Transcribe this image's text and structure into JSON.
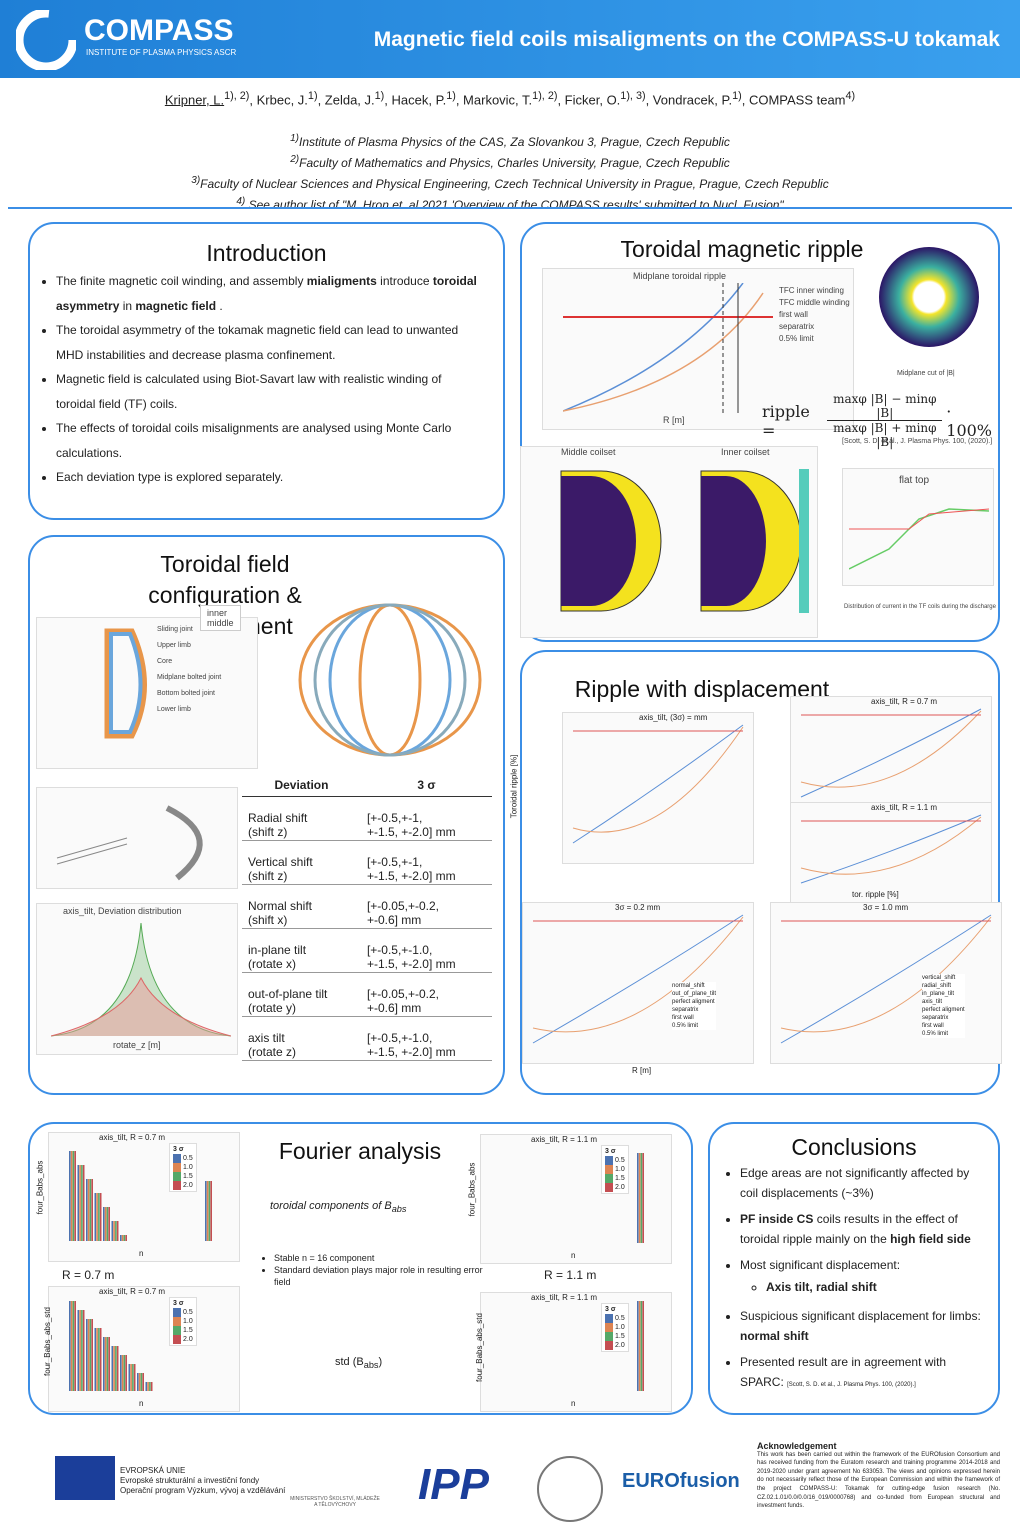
{
  "header": {
    "logo": "COMPASS",
    "logo_sub": "INSTITUTE OF PLASMA PHYSICS ASCR",
    "title": "Magnetic field coils misaligments on the COMPASS-U tokamak"
  },
  "authors": [
    {
      "name": "Kripner, L.",
      "sup": "1), 2)"
    },
    {
      "name": ", Krbec, J.",
      "sup": "1)"
    },
    {
      "name": ", Zelda, J.",
      "sup": "1)"
    },
    {
      "name": ", Hacek, P.",
      "sup": "1)"
    },
    {
      "name": ", Markovic, T.",
      "sup": "1), 2)"
    },
    {
      "name": ", Ficker, O.",
      "sup": "1), 3)"
    },
    {
      "name": ", Vondracek, P.",
      "sup": "1)"
    },
    {
      "name": ", COMPASS team",
      "sup": "4)"
    }
  ],
  "affiliations": [
    {
      "sup": "1)",
      "text": "Institute of Plasma Physics of the CAS, Za Slovankou 3, Prague, Czech Republic"
    },
    {
      "sup": "2)",
      "text": "Faculty of Mathematics and Physics, Charles University, Prague, Czech Republic"
    },
    {
      "sup": "3)",
      "text": "Faculty of Nuclear Sciences and Physical Engineering, Czech Technical University in Prague, Prague, Czech Republic"
    },
    {
      "sup": "4)",
      "text": " See author list of \"M. Hron et. al 2021 'Overview of the COMPASS results' submitted to Nucl. Fusion\""
    }
  ],
  "introduction": {
    "heading": "Introduction",
    "bullets": [
      [
        "The finite magnetic coil winding, and assembly ",
        {
          "b": "mialigments"
        },
        " introduce ",
        {
          "b": "toroidal asymmetry"
        },
        " in ",
        {
          "b": "magnetic field"
        },
        "  ."
      ],
      [
        "The toroidal asymmetry of the tokamak magnetic field can lead to unwanted MHD instabilities and decrease plasma confinement."
      ],
      [
        "Magnetic field is calculated using Biot-Savart law with realistic winding of toroidal field (TF) coils."
      ],
      [
        "The effects of toroidal coils misalignments are analysed using Monte Carlo calculations."
      ],
      [
        "Each deviation type is explored separately."
      ]
    ]
  },
  "ripple": {
    "heading": "Toroidal magnetic ripple",
    "plot_title": "Midplane toroidal ripple",
    "legend": [
      "TFC inner winding",
      "TFC middle winding",
      "first wall",
      "separatrix",
      "0.5% limit"
    ],
    "xlabel": "R [m]",
    "ylabel": "Tor. ripple [%]",
    "cut_caption": "Midplane cut of |B|",
    "formula_lhs": "ripple =",
    "formula_num": "maxφ |B| − minφ |B|",
    "formula_den": "maxφ |B| + minφ |B|",
    "formula_rhs": "· 100%",
    "reference": "[Scott, S. D. et al., J. Plasma Phys. 100, (2020).]",
    "coilset_titles": [
      "Middle coilset",
      "Inner coilset"
    ],
    "flat_top": "flat top",
    "current_caption": "Distribution of current in the TF coils during the discharge"
  },
  "configuration": {
    "heading": "Toroidal field configuration & displacement",
    "labels": [
      "Sliding joint",
      "Upper limb",
      "Core",
      "Midplane bolted joint",
      "Bottom bolted joint",
      "Lower limb"
    ],
    "legend": [
      "inner",
      "middle"
    ],
    "dist_title": "axis_tilt, Deviation distribution",
    "dist_xlabel": "rotate_z [m]",
    "table": {
      "header": [
        "Deviation",
        "3 σ"
      ],
      "rows": [
        [
          "Radial shift",
          "(shift z)",
          "[+-0.5,+-1,",
          "+-1.5, +-2.0] mm"
        ],
        [
          "Vertical shift",
          "(shift z)",
          "[+-0.5,+-1,",
          "+-1.5, +-2.0] mm"
        ],
        [
          "Normal shift",
          "(shift x)",
          "[+-0.05,+-0.2,",
          "+-0.6] mm"
        ],
        [
          "in-plane tilt",
          "(rotate x)",
          "[+-0.5,+-1.0,",
          "+-1.5, +-2.0] mm"
        ],
        [
          "out-of-plane tilt",
          "(rotate y)",
          "[+-0.05,+-0.2,",
          "+-0.6] mm"
        ],
        [
          "axis tilt",
          "(rotate z)",
          "[+-0.5,+-1.0,",
          "+-1.5, +-2.0] mm"
        ]
      ]
    }
  },
  "displacement": {
    "heading": "Ripple with displacement",
    "plot_titles": [
      "axis_tilt, (3σ) = mm",
      "axis_tilt, R = 0.7 m",
      "axis_tilt, R = 1.1 m",
      "3σ = 0.2 mm",
      "3σ = 1.0 mm"
    ],
    "xlabel": "R [m]",
    "ylabel": "Toroidal ripple [%]",
    "hist_xlabel": "tor. ripple [%]",
    "legend_left": [
      "normal_shift",
      "out_of_plane_tilt",
      "perfect aligment",
      "separatrix",
      "first wall",
      "0.5% limit"
    ],
    "legend_right": [
      "vertical_shift",
      "radial_shift",
      "in_plane_tilt",
      "axis_tilt",
      "perfect aligment",
      "separatrix",
      "first wall",
      "0.5% limit"
    ]
  },
  "fourier": {
    "heading": "Fourier analysis",
    "toroidal_label": "toroidal components of B",
    "toroidal_sub": "abs",
    "std_label": "std (B",
    "std_sub": "abs",
    "std_close": ")",
    "bullets": [
      "Stable n = 16 component",
      "Standard deviation plays major role in resulting error field"
    ],
    "r_left": "R = 0.7  m",
    "r_right": "R = 1.1 m",
    "plot_titles": [
      "axis_tilt, R = 0.7 m",
      "axis_tilt, R = 1.1 m",
      "axis_tilt, R = 0.7 m",
      "axis_tilt, R = 1.1 m"
    ],
    "ylabels": [
      "four_Babs_abs",
      "four_Babs_abs",
      "four_Babs_abs_std",
      "four_Babs_abs_std"
    ],
    "xlabel": "n",
    "legend_title": "3 σ",
    "legend": [
      "0.5",
      "1.0",
      "1.5",
      "2.0"
    ]
  },
  "conclusions": {
    "heading": "Conclusions",
    "bullets": [
      [
        "Edge areas are not significantly affected by coil displacements (~3%)"
      ],
      [
        {
          "b": "PF inside CS"
        },
        " coils results in the effect of toroidal ripple mainly on the ",
        {
          "b": "high field side"
        }
      ],
      [
        "Most significant displacement:"
      ],
      [
        "Suspicious significant displacement for limbs: ",
        {
          "b": "normal shift"
        }
      ],
      [
        "Presented result are in agreement with SPARC: "
      ]
    ],
    "sub_bullet": "Axis tilt, radial shift",
    "reference": "[Scott, S. D. et al., J. Plasma Phys. 100, (2020).]"
  },
  "acknowledgement": {
    "title": "Acknowledgement",
    "text": "This work has been carried out within the framework of the EUROfusion Consortium and has received funding from the Euratom research and training programme 2014-2018 and 2019-2020 under grant agreement No 633053. The views and opinions expressed herein do not necessarily reflect those of the European Commission and within the framework of the project COMPASS-U: Tokamak for cutting-edge fusion research (No. CZ.02.1.01/0.0/0.0/16_019/0000768) and co-funded from European structural and investment funds."
  },
  "logos": {
    "eu": [
      "EVROPSKÁ UNIE",
      "Evropské strukturální a investiční fondy",
      "Operační program Výzkum, vývoj a vzdělávání"
    ],
    "msmt": "MINISTERSTVO ŠKOLSTVÍ, MLÁDEŽE A TĚLOVÝCHOVY",
    "ipp": "IPP",
    "euro": "EUROfusion"
  }
}
